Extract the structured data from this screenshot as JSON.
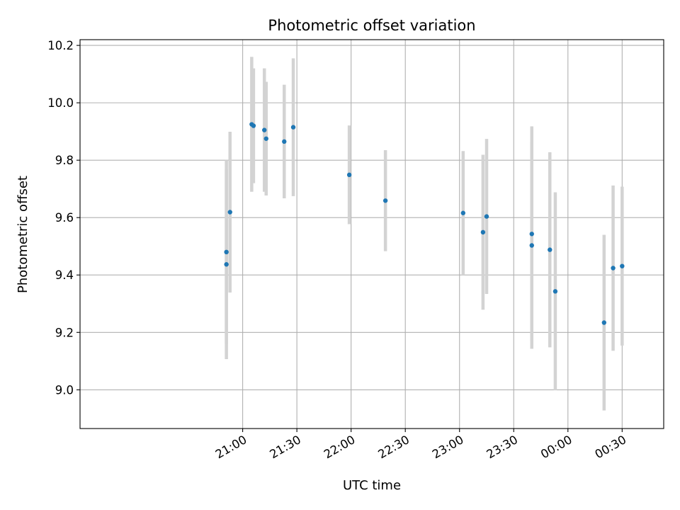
{
  "chart_data": {
    "type": "scatter",
    "title": "Photometric offset variation",
    "xlabel": "UTC time",
    "ylabel": "Photometric offset",
    "x_range_minutes": [
      1170,
      1493
    ],
    "ylim": [
      8.865,
      10.22
    ],
    "grid": true,
    "x_ticks": [
      {
        "label": "21:00",
        "minute": 1260
      },
      {
        "label": "21:30",
        "minute": 1290
      },
      {
        "label": "22:00",
        "minute": 1320
      },
      {
        "label": "22:30",
        "minute": 1350
      },
      {
        "label": "23:00",
        "minute": 1380
      },
      {
        "label": "23:30",
        "minute": 1410
      },
      {
        "label": "00:00",
        "minute": 1440
      },
      {
        "label": "00:30",
        "minute": 1470
      }
    ],
    "y_ticks": [
      "9.0",
      "9.2",
      "9.4",
      "9.6",
      "9.8",
      "10.0",
      "10.2"
    ],
    "point_color": "#1f77b4",
    "errorbar_color": "#d3d3d3",
    "points": [
      {
        "time": "20:51",
        "y": 9.437,
        "err": 0.33
      },
      {
        "time": "20:51",
        "y": 9.48,
        "err": 0.32
      },
      {
        "time": "20:53",
        "y": 9.619,
        "err": 0.28
      },
      {
        "time": "21:05",
        "y": 9.925,
        "err": 0.235
      },
      {
        "time": "21:06",
        "y": 9.92,
        "err": 0.2
      },
      {
        "time": "21:12",
        "y": 9.905,
        "err": 0.215
      },
      {
        "time": "21:13",
        "y": 9.875,
        "err": 0.198
      },
      {
        "time": "21:23",
        "y": 9.865,
        "err": 0.198
      },
      {
        "time": "21:28",
        "y": 9.915,
        "err": 0.24
      },
      {
        "time": "21:59",
        "y": 9.749,
        "err": 0.172
      },
      {
        "time": "22:19",
        "y": 9.659,
        "err": 0.176
      },
      {
        "time": "23:02",
        "y": 9.616,
        "err": 0.216
      },
      {
        "time": "23:13",
        "y": 9.549,
        "err": 0.27
      },
      {
        "time": "23:15",
        "y": 9.604,
        "err": 0.27
      },
      {
        "time": "23:40",
        "y": 9.543,
        "err": 0.375
      },
      {
        "time": "23:40",
        "y": 9.503,
        "err": 0.36
      },
      {
        "time": "23:50",
        "y": 9.488,
        "err": 0.34
      },
      {
        "time": "23:53",
        "y": 9.343,
        "err": 0.345
      },
      {
        "time": "00:20",
        "y": 9.234,
        "err": 0.306
      },
      {
        "time": "00:25",
        "y": 9.424,
        "err": 0.288
      },
      {
        "time": "00:30",
        "y": 9.431,
        "err": 0.277
      }
    ]
  }
}
